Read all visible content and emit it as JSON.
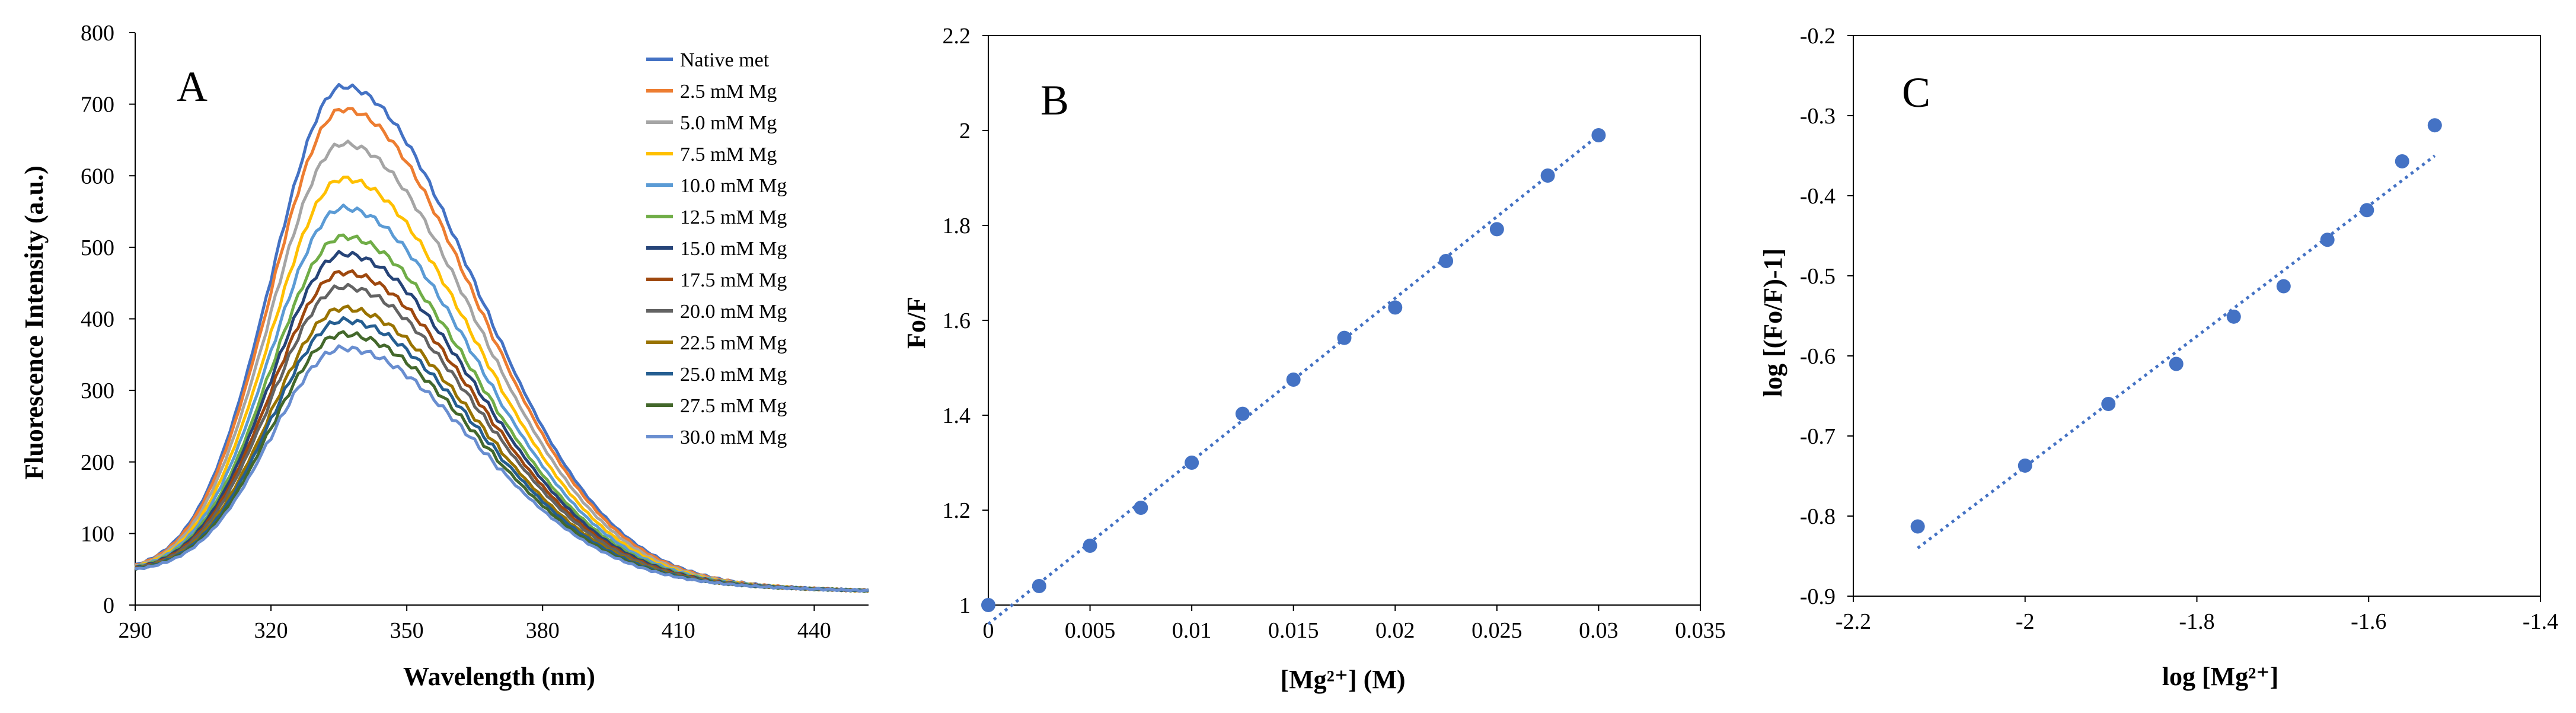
{
  "chart_data": [
    {
      "panel": "A",
      "type": "line",
      "xlabel": "Wavelength (nm)",
      "ylabel": "Fluorescence Intensity (a.u.)",
      "xlim": [
        290,
        452
      ],
      "ylim": [
        0,
        800
      ],
      "xticks": [
        290,
        320,
        350,
        380,
        410,
        440
      ],
      "yticks": [
        0,
        100,
        200,
        300,
        400,
        500,
        600,
        700,
        800
      ],
      "grid": false,
      "legend_position": "top-right",
      "curve_model": {
        "x_start": 290,
        "x_end": 452,
        "baseline_at_290": 45,
        "baseline_at_452": 20
      },
      "series": [
        {
          "name": "Native met",
          "peak_x": 336,
          "peak_y": 732,
          "color": "#4472C4"
        },
        {
          "name": "2.5 mM Mg",
          "peak_x": 336,
          "peak_y": 700,
          "color": "#ED7D31"
        },
        {
          "name": "5.0 mM Mg",
          "peak_x": 336,
          "peak_y": 652,
          "color": "#A5A5A5"
        },
        {
          "name": "7.5 mM Mg",
          "peak_x": 336,
          "peak_y": 603,
          "color": "#FFC000"
        },
        {
          "name": "10.0 mM Mg",
          "peak_x": 336,
          "peak_y": 562,
          "color": "#5B9BD5"
        },
        {
          "name": "12.5 mM Mg",
          "peak_x": 336,
          "peak_y": 522,
          "color": "#70AD47"
        },
        {
          "name": "15.0 mM Mg",
          "peak_x": 336,
          "peak_y": 498,
          "color": "#264478"
        },
        {
          "name": "17.5 mM Mg",
          "peak_x": 336,
          "peak_y": 472,
          "color": "#9E480E"
        },
        {
          "name": "20.0 mM Mg",
          "peak_x": 336,
          "peak_y": 452,
          "color": "#636363"
        },
        {
          "name": "22.5 mM Mg",
          "peak_x": 336,
          "peak_y": 422,
          "color": "#997300"
        },
        {
          "name": "25.0 mM Mg",
          "peak_x": 336,
          "peak_y": 405,
          "color": "#255E91"
        },
        {
          "name": "27.5 mM Mg",
          "peak_x": 336,
          "peak_y": 386,
          "color": "#43682B"
        },
        {
          "name": "30.0 mM Mg",
          "peak_x": 336,
          "peak_y": 366,
          "color": "#698ED0"
        }
      ]
    },
    {
      "panel": "B",
      "type": "scatter",
      "xlabel": "[Mg²⁺] (M)",
      "ylabel": "Fo/F",
      "xlim": [
        0,
        0.035
      ],
      "ylim": [
        1,
        2.2
      ],
      "xticks": [
        "0",
        "0.005",
        "0.01",
        "0.015",
        "0.02",
        "0.025",
        "0.03",
        "0.035"
      ],
      "yticks": [
        "1",
        "1.2",
        "1.4",
        "1.6",
        "1.8",
        "2",
        "2.2"
      ],
      "grid": false,
      "color": "#4472C4",
      "x": [
        0,
        0.0025,
        0.005,
        0.0075,
        0.01,
        0.0125,
        0.015,
        0.0175,
        0.02,
        0.0225,
        0.025,
        0.0275,
        0.03
      ],
      "y": [
        1.0,
        1.04,
        1.125,
        1.205,
        1.3,
        1.403,
        1.475,
        1.563,
        1.627,
        1.725,
        1.792,
        1.905,
        1.99
      ],
      "trendline": {
        "x": [
          0,
          0.03
        ],
        "y": [
          0.96,
          1.99
        ],
        "style": "dotted"
      }
    },
    {
      "panel": "C",
      "type": "scatter",
      "xlabel": "log [Mg²⁺]",
      "ylabel": "log [(Fo/F)-1]",
      "xlim": [
        -2.2,
        -1.4
      ],
      "ylim": [
        -0.9,
        -0.2
      ],
      "xticks": [
        "-2.2",
        "-2",
        "-1.8",
        "-1.6",
        "-1.4"
      ],
      "yticks": [
        "-0.9",
        "-0.8",
        "-0.7",
        "-0.6",
        "-0.5",
        "-0.4",
        "-0.3",
        "-0.2"
      ],
      "grid": false,
      "color": "#4472C4",
      "x": [
        -2.125,
        -2.0,
        -1.903,
        -1.824,
        -1.757,
        -1.699,
        -1.648,
        -1.602,
        -1.561,
        -1.523
      ],
      "y": [
        -0.813,
        -0.737,
        -0.66,
        -0.61,
        -0.551,
        -0.513,
        -0.455,
        -0.418,
        -0.357,
        -0.312
      ],
      "trendline": {
        "x": [
          -2.125,
          -1.523
        ],
        "y": [
          -0.84,
          -0.35
        ],
        "style": "dotted"
      }
    }
  ]
}
